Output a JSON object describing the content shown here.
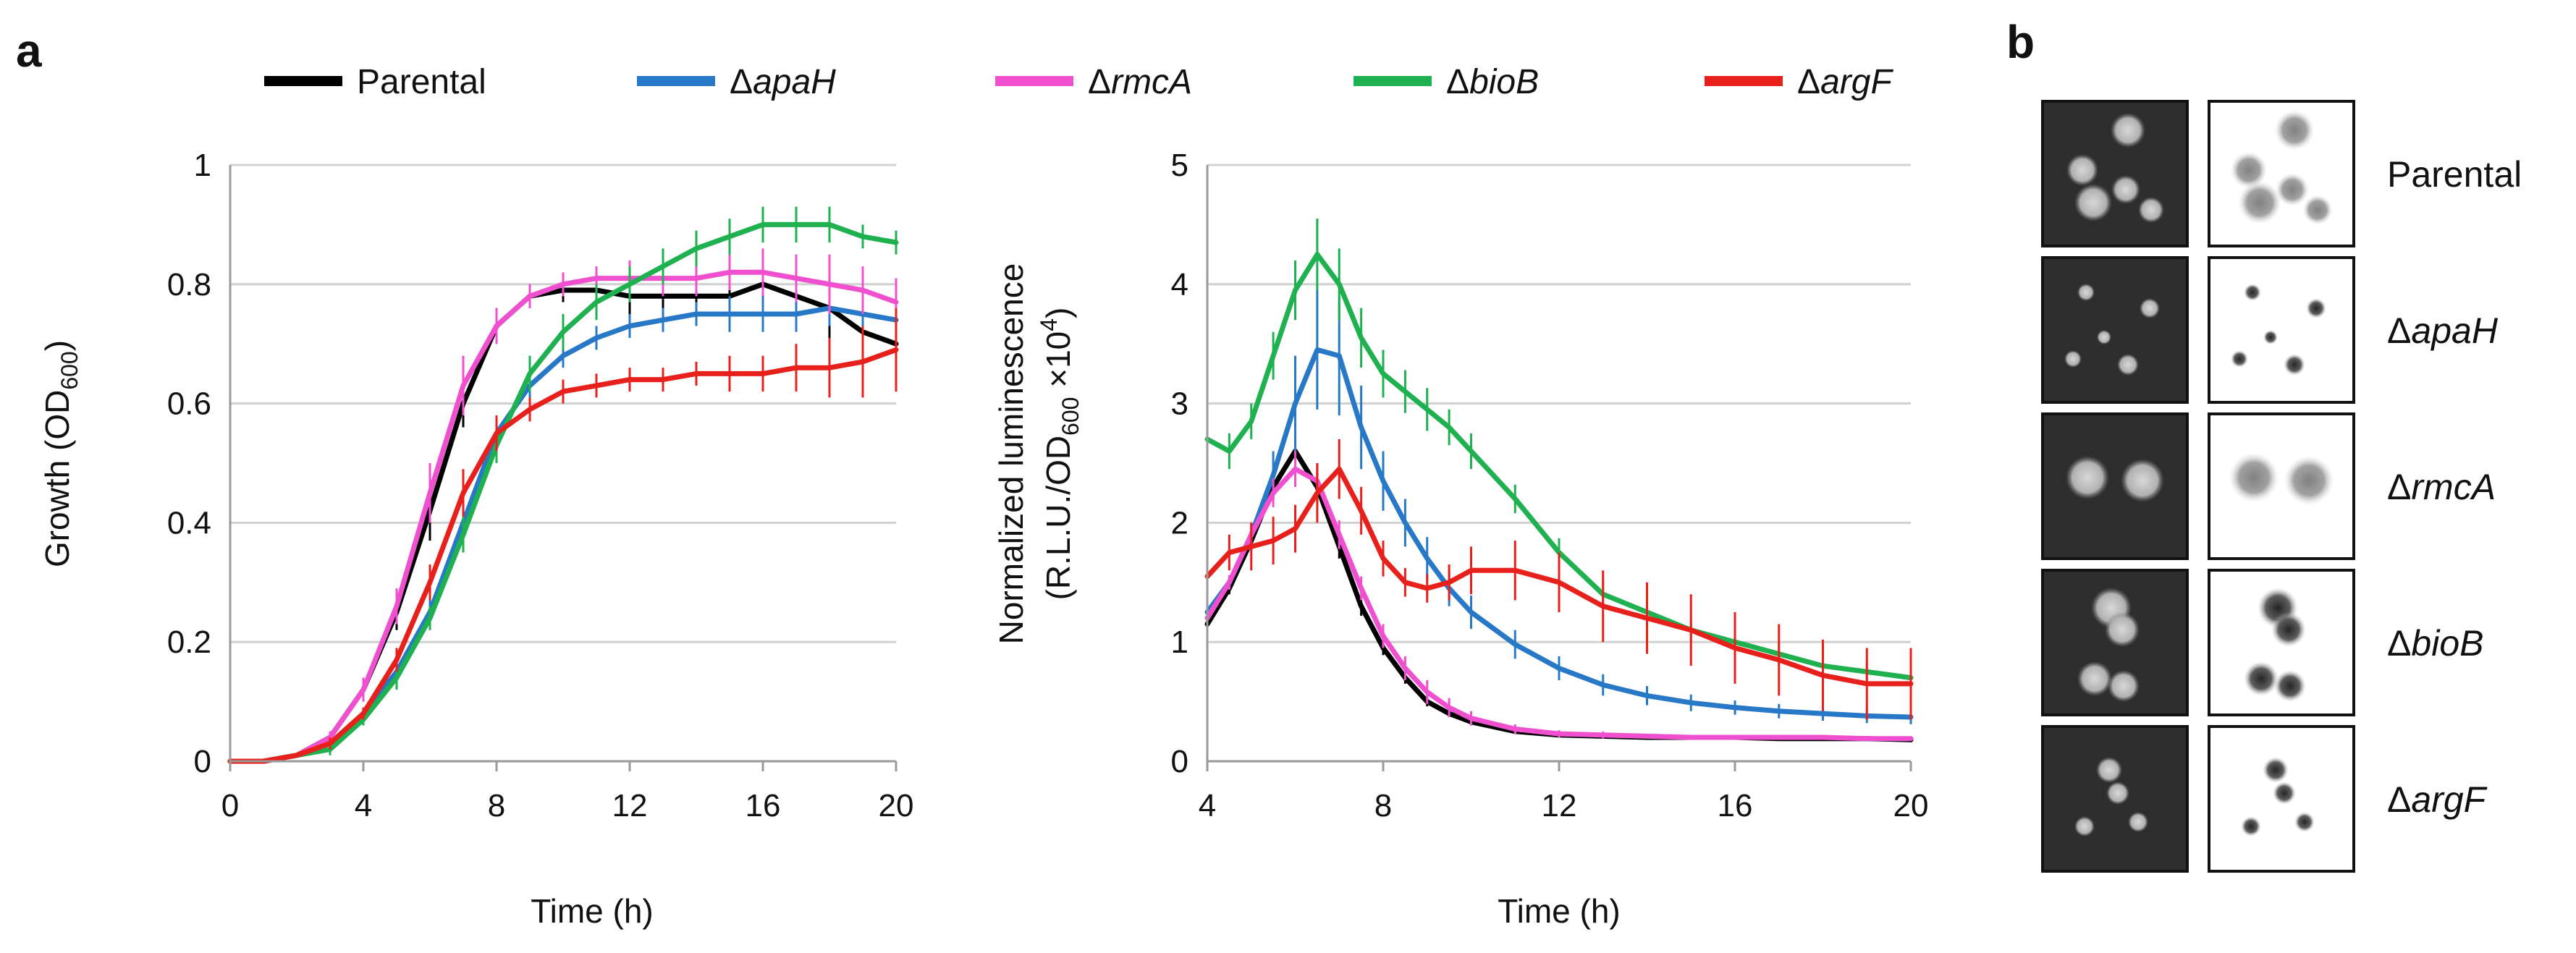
{
  "panel_labels": {
    "a": "a",
    "b": "b"
  },
  "legend": [
    {
      "delta": "",
      "name": "Parental",
      "italic": false,
      "color": "#000000"
    },
    {
      "delta": "Δ",
      "name": "apaH",
      "italic": true,
      "color": "#2878c8"
    },
    {
      "delta": "Δ",
      "name": "rmcA",
      "italic": true,
      "color": "#f050d0"
    },
    {
      "delta": "Δ",
      "name": "bioB",
      "italic": true,
      "color": "#1fb050"
    },
    {
      "delta": "Δ",
      "name": "argF",
      "italic": true,
      "color": "#e8201c"
    }
  ],
  "chart_data": [
    {
      "type": "line",
      "title": "",
      "xlabel": "Time (h)",
      "ylabel": {
        "main": "Growth (OD",
        "sub": "600",
        "close": ")"
      },
      "xlim": [
        0,
        20
      ],
      "ylim": [
        0,
        1
      ],
      "xticks": [
        0,
        4,
        8,
        12,
        16,
        20
      ],
      "yticks": [
        0,
        0.2,
        0.4,
        0.6,
        0.8,
        1
      ],
      "ytick_labels": [
        "0",
        "0.2",
        "0.4",
        "0.6",
        "0.8",
        "1"
      ],
      "grid": true,
      "series": [
        {
          "name": "Parental",
          "color": "#000000",
          "x": [
            0,
            1,
            2,
            3,
            4,
            5,
            6,
            7,
            8,
            9,
            10,
            11,
            12,
            13,
            14,
            15,
            16,
            17,
            18,
            19,
            20
          ],
          "y": [
            0,
            0,
            0.01,
            0.04,
            0.12,
            0.25,
            0.42,
            0.6,
            0.73,
            0.78,
            0.79,
            0.79,
            0.78,
            0.78,
            0.78,
            0.78,
            0.8,
            0.78,
            0.76,
            0.72,
            0.7
          ],
          "err": [
            0,
            0,
            0,
            0.01,
            0.02,
            0.03,
            0.05,
            0.04,
            0.03,
            0.02,
            0.02,
            0.02,
            0.03,
            0.03,
            0.04,
            0.04,
            0.05,
            0.05,
            0.06,
            0.07,
            0.08
          ]
        },
        {
          "name": "ΔapaH",
          "color": "#2878c8",
          "x": [
            0,
            1,
            2,
            3,
            4,
            5,
            6,
            7,
            8,
            9,
            10,
            11,
            12,
            13,
            14,
            15,
            16,
            17,
            18,
            19,
            20
          ],
          "y": [
            0,
            0,
            0.01,
            0.03,
            0.08,
            0.15,
            0.25,
            0.4,
            0.55,
            0.63,
            0.68,
            0.71,
            0.73,
            0.74,
            0.75,
            0.75,
            0.75,
            0.75,
            0.76,
            0.75,
            0.74
          ],
          "err": [
            0,
            0,
            0,
            0.01,
            0.01,
            0.02,
            0.03,
            0.04,
            0.03,
            0.03,
            0.02,
            0.02,
            0.02,
            0.02,
            0.02,
            0.03,
            0.03,
            0.03,
            0.03,
            0.04,
            0.04
          ]
        },
        {
          "name": "ΔrmcA",
          "color": "#f050d0",
          "x": [
            0,
            1,
            2,
            3,
            4,
            5,
            6,
            7,
            8,
            9,
            10,
            11,
            12,
            13,
            14,
            15,
            16,
            17,
            18,
            19,
            20
          ],
          "y": [
            0,
            0,
            0.01,
            0.04,
            0.12,
            0.26,
            0.45,
            0.63,
            0.73,
            0.78,
            0.8,
            0.81,
            0.81,
            0.81,
            0.81,
            0.82,
            0.82,
            0.81,
            0.8,
            0.79,
            0.77
          ],
          "err": [
            0,
            0,
            0,
            0.01,
            0.02,
            0.03,
            0.05,
            0.05,
            0.03,
            0.02,
            0.02,
            0.02,
            0.03,
            0.03,
            0.03,
            0.03,
            0.04,
            0.04,
            0.05,
            0.04,
            0.04
          ]
        },
        {
          "name": "ΔbioB",
          "color": "#1fb050",
          "x": [
            0,
            1,
            2,
            3,
            4,
            5,
            6,
            7,
            8,
            9,
            10,
            11,
            12,
            13,
            14,
            15,
            16,
            17,
            18,
            19,
            20
          ],
          "y": [
            0,
            0,
            0.01,
            0.02,
            0.07,
            0.14,
            0.24,
            0.38,
            0.53,
            0.65,
            0.72,
            0.77,
            0.8,
            0.83,
            0.86,
            0.88,
            0.9,
            0.9,
            0.9,
            0.88,
            0.87
          ],
          "err": [
            0,
            0,
            0,
            0.01,
            0.01,
            0.02,
            0.02,
            0.03,
            0.03,
            0.03,
            0.03,
            0.03,
            0.03,
            0.03,
            0.03,
            0.03,
            0.03,
            0.03,
            0.03,
            0.02,
            0.02
          ]
        },
        {
          "name": "ΔargF",
          "color": "#e8201c",
          "x": [
            0,
            1,
            2,
            3,
            4,
            5,
            6,
            7,
            8,
            9,
            10,
            11,
            12,
            13,
            14,
            15,
            16,
            17,
            18,
            19,
            20
          ],
          "y": [
            0,
            0,
            0.01,
            0.03,
            0.08,
            0.17,
            0.3,
            0.45,
            0.55,
            0.59,
            0.62,
            0.63,
            0.64,
            0.64,
            0.65,
            0.65,
            0.65,
            0.66,
            0.66,
            0.67,
            0.69
          ],
          "err": [
            0,
            0,
            0,
            0.01,
            0.01,
            0.02,
            0.03,
            0.04,
            0.03,
            0.02,
            0.02,
            0.02,
            0.02,
            0.02,
            0.02,
            0.03,
            0.03,
            0.04,
            0.05,
            0.06,
            0.07
          ]
        }
      ]
    },
    {
      "type": "line",
      "title": "",
      "xlabel": "Time (h)",
      "ylabel": {
        "line1": "Normalized luminescence",
        "main": "(R.L.U./OD",
        "sub": "600",
        "mid": " ×10",
        "sup": "4",
        "close": ")"
      },
      "xlim": [
        4,
        20
      ],
      "ylim": [
        0,
        5
      ],
      "xticks": [
        4,
        8,
        12,
        16,
        20
      ],
      "yticks": [
        0,
        1,
        2,
        3,
        4,
        5
      ],
      "ytick_labels": [
        "0",
        "1",
        "2",
        "3",
        "4",
        "5"
      ],
      "grid": true,
      "series": [
        {
          "name": "Parental",
          "color": "#000000",
          "x": [
            4,
            4.5,
            5,
            5.5,
            6,
            6.5,
            7,
            7.5,
            8,
            8.5,
            9,
            9.5,
            10,
            11,
            12,
            13,
            14,
            15,
            16,
            17,
            18,
            19,
            20
          ],
          "y": [
            1.15,
            1.45,
            1.85,
            2.3,
            2.6,
            2.3,
            1.8,
            1.3,
            0.95,
            0.7,
            0.5,
            0.4,
            0.33,
            0.25,
            0.22,
            0.21,
            0.2,
            0.2,
            0.2,
            0.19,
            0.19,
            0.19,
            0.18
          ],
          "err": [
            0.05,
            0.05,
            0.08,
            0.1,
            0.12,
            0.12,
            0.1,
            0.08,
            0.06,
            0.05,
            0.04,
            0.03,
            0.03,
            0.02,
            0.02,
            0.02,
            0.02,
            0.02,
            0.02,
            0.02,
            0.02,
            0.02,
            0.02
          ]
        },
        {
          "name": "ΔapaH",
          "color": "#2878c8",
          "x": [
            4,
            4.5,
            5,
            5.5,
            6,
            6.5,
            7,
            7.5,
            8,
            8.5,
            9,
            9.5,
            10,
            11,
            12,
            13,
            14,
            15,
            16,
            17,
            18,
            19,
            20
          ],
          "y": [
            1.25,
            1.5,
            1.9,
            2.4,
            3.0,
            3.45,
            3.4,
            2.8,
            2.35,
            2.0,
            1.7,
            1.45,
            1.25,
            0.98,
            0.78,
            0.64,
            0.55,
            0.49,
            0.45,
            0.42,
            0.4,
            0.38,
            0.37
          ],
          "err": [
            0.05,
            0.06,
            0.1,
            0.2,
            0.4,
            0.5,
            0.5,
            0.35,
            0.25,
            0.2,
            0.18,
            0.15,
            0.14,
            0.12,
            0.1,
            0.09,
            0.08,
            0.07,
            0.06,
            0.06,
            0.06,
            0.06,
            0.06
          ]
        },
        {
          "name": "ΔrmcA",
          "color": "#f050d0",
          "x": [
            4,
            4.5,
            5,
            5.5,
            6,
            6.5,
            7,
            7.5,
            8,
            8.5,
            9,
            9.5,
            10,
            11,
            12,
            13,
            14,
            15,
            16,
            17,
            18,
            19,
            20
          ],
          "y": [
            1.2,
            1.5,
            1.9,
            2.25,
            2.45,
            2.35,
            1.9,
            1.45,
            1.05,
            0.78,
            0.58,
            0.45,
            0.36,
            0.27,
            0.23,
            0.22,
            0.21,
            0.2,
            0.2,
            0.2,
            0.2,
            0.19,
            0.19
          ],
          "err": [
            0.05,
            0.06,
            0.1,
            0.12,
            0.15,
            0.15,
            0.12,
            0.1,
            0.1,
            0.1,
            0.1,
            0.08,
            0.06,
            0.04,
            0.03,
            0.03,
            0.02,
            0.02,
            0.02,
            0.02,
            0.02,
            0.02,
            0.02
          ]
        },
        {
          "name": "ΔbioB",
          "color": "#1fb050",
          "x": [
            4,
            4.5,
            5,
            5.5,
            6,
            6.5,
            7,
            7.5,
            8,
            8.5,
            9,
            9.5,
            10,
            11,
            12,
            13,
            14,
            15,
            16,
            17,
            18,
            19,
            20
          ],
          "y": [
            2.7,
            2.6,
            2.85,
            3.4,
            3.95,
            4.25,
            4.0,
            3.55,
            3.25,
            3.1,
            2.95,
            2.8,
            2.6,
            2.2,
            1.75,
            1.4,
            1.25,
            1.1,
            1.0,
            0.9,
            0.8,
            0.75,
            0.7
          ],
          "err": [
            0.15,
            0.15,
            0.15,
            0.2,
            0.25,
            0.3,
            0.3,
            0.25,
            0.2,
            0.18,
            0.18,
            0.15,
            0.15,
            0.12,
            0.12,
            0.12,
            0.1,
            0.1,
            0.1,
            0.1,
            0.1,
            0.08,
            0.08
          ]
        },
        {
          "name": "ΔargF",
          "color": "#e8201c",
          "x": [
            4,
            4.5,
            5,
            5.5,
            6,
            6.5,
            7,
            7.5,
            8,
            8.5,
            9,
            9.5,
            10,
            11,
            12,
            13,
            14,
            15,
            16,
            17,
            18,
            19,
            20
          ],
          "y": [
            1.55,
            1.75,
            1.8,
            1.85,
            1.95,
            2.25,
            2.45,
            2.1,
            1.7,
            1.5,
            1.45,
            1.5,
            1.6,
            1.6,
            1.5,
            1.3,
            1.2,
            1.1,
            0.95,
            0.85,
            0.72,
            0.65,
            0.65
          ],
          "err": [
            0.1,
            0.15,
            0.2,
            0.2,
            0.2,
            0.25,
            0.25,
            0.2,
            0.15,
            0.12,
            0.12,
            0.15,
            0.2,
            0.25,
            0.25,
            0.3,
            0.3,
            0.3,
            0.3,
            0.3,
            0.3,
            0.3,
            0.3
          ]
        }
      ]
    }
  ],
  "panel_b": {
    "rows": [
      {
        "delta": "",
        "name": "Parental",
        "italic": false
      },
      {
        "delta": "Δ",
        "name": "apaH",
        "italic": true
      },
      {
        "delta": "Δ",
        "name": "rmcA",
        "italic": true
      },
      {
        "delta": "Δ",
        "name": "bioB",
        "italic": true
      },
      {
        "delta": "Δ",
        "name": "argF",
        "italic": true
      }
    ]
  }
}
